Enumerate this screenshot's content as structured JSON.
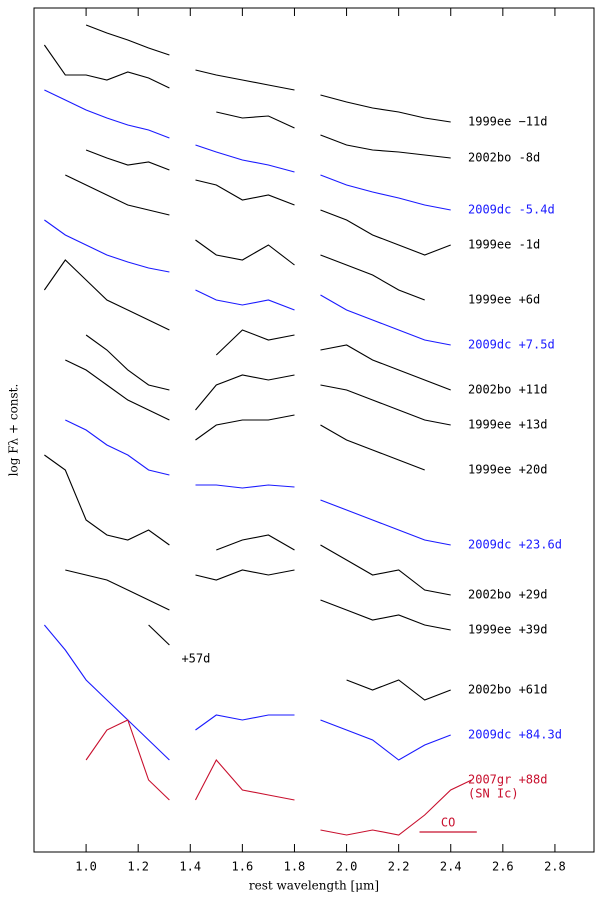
{
  "chart_data": {
    "type": "line",
    "xlabel": "rest wavelength [μm]",
    "ylabel": "log Fλ + const.",
    "xlim": [
      0.8,
      2.95
    ],
    "ylim": [
      0,
      844
    ],
    "xticks": [
      {
        "value": 1,
        "label": "1.0"
      },
      1.2,
      1.4,
      1.6,
      1.8,
      {
        "value": 2,
        "label": "2.0"
      },
      2.2,
      2.4,
      2.6,
      2.8
    ],
    "x": [
      0.84,
      0.92,
      1.0,
      1.08,
      1.16,
      1.24,
      1.32,
      1.36,
      1.42,
      1.5,
      1.6,
      1.7,
      1.8,
      1.85,
      1.9,
      2.0,
      2.1,
      2.2,
      2.3,
      2.4,
      2.48
    ],
    "series": [
      {
        "name": "1999ee −11d",
        "color": "#000000",
        "values": [
          null,
          null,
          827,
          819,
          812,
          804,
          797,
          null,
          782,
          777,
          772,
          767,
          762,
          null,
          757,
          750,
          744,
          740,
          734,
          730,
          null
        ]
      },
      {
        "name": "2002bo -8d",
        "color": "#000000",
        "values": [
          807,
          777,
          777,
          772,
          780,
          774,
          764,
          null,
          null,
          740,
          734,
          736,
          724,
          null,
          717,
          707,
          702,
          700,
          697,
          694,
          null
        ]
      },
      {
        "name": "2009dc -5.4d",
        "color": "#1a1aff",
        "values": [
          762,
          752,
          742,
          734,
          727,
          722,
          714,
          null,
          707,
          700,
          692,
          687,
          680,
          null,
          677,
          667,
          660,
          654,
          647,
          642,
          null
        ]
      },
      {
        "name": "1999ee -1d",
        "color": "#000000",
        "values": [
          null,
          null,
          702,
          694,
          687,
          690,
          682,
          null,
          672,
          667,
          652,
          657,
          647,
          null,
          642,
          632,
          617,
          607,
          597,
          607,
          null
        ]
      },
      {
        "name": "1999ee +6d",
        "color": "#000000",
        "values": [
          null,
          677,
          667,
          657,
          647,
          642,
          637,
          null,
          612,
          597,
          592,
          607,
          587,
          null,
          597,
          587,
          577,
          562,
          552,
          null,
          null
        ]
      },
      {
        "name": "2009dc +7.5d",
        "color": "#1a1aff",
        "values": [
          632,
          617,
          607,
          597,
          590,
          584,
          580,
          null,
          562,
          552,
          547,
          552,
          542,
          null,
          557,
          542,
          532,
          522,
          512,
          507,
          null
        ]
      },
      {
        "name": "2002bo +11d",
        "color": "#000000",
        "values": [
          562,
          592,
          572,
          552,
          542,
          532,
          522,
          null,
          null,
          497,
          522,
          512,
          517,
          null,
          502,
          507,
          492,
          482,
          472,
          462,
          null
        ]
      },
      {
        "name": "1999ee +13d",
        "color": "#000000",
        "values": [
          null,
          null,
          517,
          502,
          482,
          467,
          462,
          null,
          442,
          467,
          477,
          472,
          477,
          null,
          467,
          462,
          452,
          442,
          432,
          427,
          null
        ]
      },
      {
        "name": "1999ee +20d",
        "color": "#000000",
        "values": [
          null,
          492,
          482,
          467,
          452,
          442,
          432,
          null,
          412,
          427,
          432,
          432,
          437,
          null,
          427,
          412,
          402,
          392,
          382,
          null,
          null
        ]
      },
      {
        "name": "2009dc +23.6d",
        "color": "#1a1aff",
        "values": [
          null,
          432,
          422,
          407,
          397,
          382,
          377,
          null,
          367,
          367,
          364,
          367,
          365,
          null,
          352,
          342,
          332,
          322,
          312,
          307,
          null
        ]
      },
      {
        "name": "2002bo +29d",
        "color": "#000000",
        "values": [
          397,
          382,
          332,
          317,
          312,
          322,
          307,
          null,
          null,
          302,
          312,
          317,
          302,
          null,
          307,
          292,
          277,
          282,
          262,
          257,
          null
        ]
      },
      {
        "name": "1999ee +39d",
        "color": "#000000",
        "values": [
          null,
          282,
          277,
          272,
          262,
          252,
          242,
          null,
          277,
          272,
          282,
          277,
          282,
          null,
          252,
          242,
          232,
          237,
          227,
          222,
          null
        ]
      },
      {
        "name": "+57d",
        "color": "#000000",
        "values": [
          null,
          null,
          null,
          null,
          null,
          227,
          207,
          null,
          null,
          null,
          null,
          null,
          null,
          null,
          null,
          null,
          null,
          null,
          null,
          null,
          null
        ]
      },
      {
        "name": "2002bo +61d",
        "color": "#000000",
        "values": [
          null,
          null,
          null,
          null,
          null,
          null,
          null,
          null,
          null,
          null,
          null,
          null,
          null,
          null,
          null,
          172,
          162,
          172,
          152,
          162,
          null
        ]
      },
      {
        "name": "2009dc +84.3d",
        "color": "#1a1aff",
        "values": [
          227,
          202,
          172,
          152,
          132,
          112,
          92,
          null,
          122,
          137,
          132,
          137,
          137,
          null,
          132,
          122,
          112,
          92,
          107,
          117,
          null
        ]
      },
      {
        "name": "2007gr +88d",
        "note": "(SN Ic)",
        "color": "#c8102e",
        "values": [
          null,
          null,
          92,
          122,
          132,
          72,
          52,
          null,
          52,
          92,
          62,
          57,
          52,
          null,
          22,
          17,
          22,
          17,
          37,
          62,
          72
        ]
      }
    ],
    "co_band": {
      "label": "CO",
      "x": [
        2.28,
        2.5
      ],
      "color": "#c8102e"
    }
  }
}
